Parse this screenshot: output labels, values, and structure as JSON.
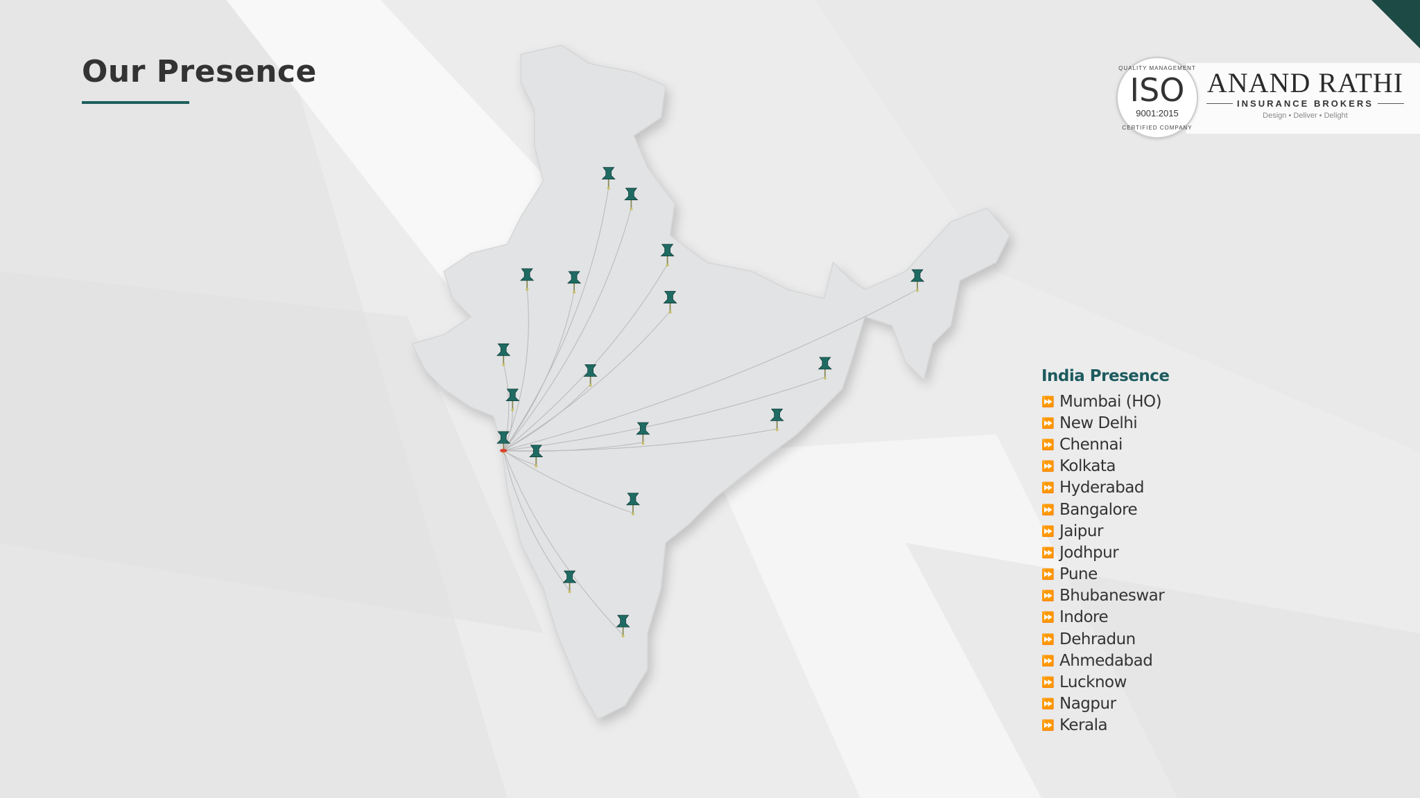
{
  "header": {
    "title": "Our Presence"
  },
  "logo": {
    "iso_top": "QUALITY MANAGEMENT",
    "iso_main": "ISO",
    "iso_number": "9001:2015",
    "iso_bottom": "CERTIFIED COMPANY",
    "brand_name": "ANAND RATHI",
    "brand_sub": "INSURANCE BROKERS",
    "tagline": "Design • Deliver • Delight"
  },
  "presence": {
    "heading": "India Presence",
    "bullet_icon": "double-chevron-right-icon",
    "cities": [
      "Mumbai (HO)",
      "New Delhi",
      "Chennai",
      "Kolkata",
      "Hyderabad",
      "Bangalore",
      "Jaipur",
      "Jodhpur",
      "Pune",
      "Bhubaneswar",
      "Indore",
      "Dehradun",
      "Ahmedabad",
      "Lucknow",
      "Nagpur",
      "Kerala"
    ]
  },
  "colors": {
    "accent": "#1d5f5c",
    "pin": "#1f6b63",
    "hub": "#d9432f",
    "map": "#e2e3e4"
  }
}
